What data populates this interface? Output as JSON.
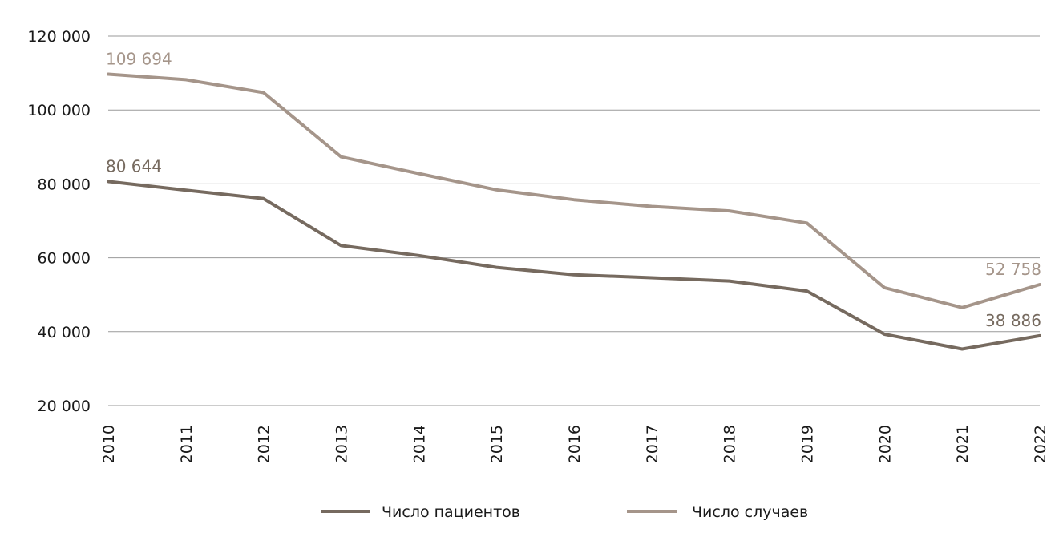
{
  "chart_data": {
    "type": "line",
    "title": "",
    "xlabel": "",
    "ylabel": "",
    "categories": [
      "2010",
      "2011",
      "2012",
      "2013",
      "2014",
      "2015",
      "2016",
      "2017",
      "2018",
      "2019",
      "2020",
      "2021",
      "2022"
    ],
    "ylim": [
      20000,
      120000
    ],
    "yticks": [
      20000,
      40000,
      60000,
      80000,
      100000,
      120000
    ],
    "ytick_labels": [
      "20 000",
      "40 000",
      "60 000",
      "80 000",
      "100 000",
      "120 000"
    ],
    "grid": true,
    "legend_position": "bottom",
    "series": [
      {
        "name": "Число пациентов",
        "color": "#766a5f",
        "values": [
          80644,
          78300,
          76000,
          63300,
          60600,
          57400,
          55400,
          54600,
          53700,
          51000,
          39300,
          35300,
          38886
        ],
        "annotations": [
          {
            "index": 0,
            "text": "80 644",
            "placement": "above-right"
          },
          {
            "index": 12,
            "text": "38 886",
            "placement": "above-left"
          }
        ]
      },
      {
        "name": "Число случаев",
        "color": "#a5958a",
        "values": [
          109694,
          108200,
          104700,
          87300,
          82800,
          78400,
          75700,
          73900,
          72700,
          69400,
          51900,
          46500,
          52758
        ],
        "annotations": [
          {
            "index": 0,
            "text": "109 694",
            "placement": "above-right"
          },
          {
            "index": 12,
            "text": "52 758",
            "placement": "above-left"
          }
        ]
      }
    ]
  }
}
